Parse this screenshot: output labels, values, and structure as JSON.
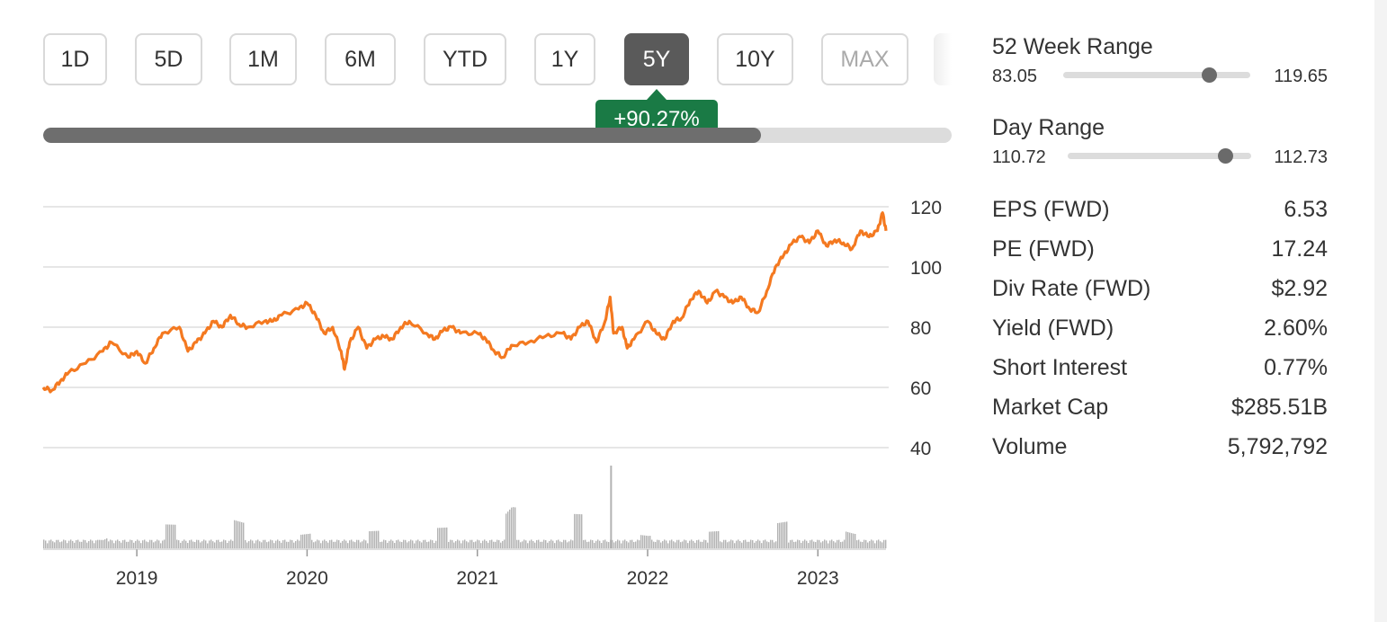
{
  "tabs": [
    {
      "label": "1D"
    },
    {
      "label": "5D"
    },
    {
      "label": "1M"
    },
    {
      "label": "6M"
    },
    {
      "label": "YTD"
    },
    {
      "label": "1Y"
    },
    {
      "label": "5Y"
    },
    {
      "label": "10Y"
    },
    {
      "label": "MAX"
    }
  ],
  "selected_tab": "5Y",
  "period_change": "+90.27%",
  "timeline_progress_percent": 79,
  "colors": {
    "price_line": "#f47920",
    "badge": "#1a7a45",
    "active_tab": "#5a5a5a",
    "volume": "#b3b3b3"
  },
  "ranges": {
    "week52": {
      "label": "52 Week Range",
      "low": "83.05",
      "high": "119.65",
      "position_percent": 78
    },
    "day": {
      "label": "Day Range",
      "low": "110.72",
      "high": "112.73",
      "position_percent": 86
    }
  },
  "stats": [
    {
      "label": "EPS (FWD)",
      "value": "6.53"
    },
    {
      "label": "PE (FWD)",
      "value": "17.24"
    },
    {
      "label": "Div Rate (FWD)",
      "value": "$2.92"
    },
    {
      "label": "Yield (FWD)",
      "value": "2.60%"
    },
    {
      "label": "Short Interest",
      "value": "0.77%"
    },
    {
      "label": "Market Cap",
      "value": "$285.51B"
    },
    {
      "label": "Volume",
      "value": "5,792,792"
    }
  ],
  "chart_data": {
    "type": "line",
    "ylim": [
      40,
      120
    ],
    "y_ticks": [
      "120",
      "100",
      "80",
      "60",
      "40"
    ],
    "x_ticks": [
      "2019",
      "2020",
      "2021",
      "2022",
      "2023"
    ],
    "x_ticks_years": [
      2019,
      2020,
      2021,
      2022,
      2023
    ],
    "xlim_years": [
      2018.45,
      2023.4
    ],
    "grid": true,
    "price_series": {
      "x": [
        2018.45,
        2018.5,
        2018.55,
        2018.6,
        2018.7,
        2018.8,
        2018.85,
        2018.95,
        2019.0,
        2019.05,
        2019.1,
        2019.15,
        2019.25,
        2019.3,
        2019.35,
        2019.4,
        2019.45,
        2019.5,
        2019.55,
        2019.6,
        2019.65,
        2019.75,
        2019.8,
        2019.85,
        2019.95,
        2020.0,
        2020.05,
        2020.1,
        2020.15,
        2020.2,
        2020.22,
        2020.25,
        2020.3,
        2020.35,
        2020.4,
        2020.45,
        2020.5,
        2020.55,
        2020.6,
        2020.7,
        2020.75,
        2020.8,
        2020.85,
        2020.9,
        2021.0,
        2021.05,
        2021.1,
        2021.15,
        2021.2,
        2021.3,
        2021.4,
        2021.5,
        2021.55,
        2021.6,
        2021.65,
        2021.7,
        2021.75,
        2021.78,
        2021.8,
        2021.85,
        2021.88,
        2021.92,
        2022.0,
        2022.05,
        2022.1,
        2022.15,
        2022.2,
        2022.25,
        2022.3,
        2022.35,
        2022.4,
        2022.45,
        2022.5,
        2022.55,
        2022.6,
        2022.65,
        2022.7,
        2022.75,
        2022.8,
        2022.85,
        2022.9,
        2022.95,
        2023.0,
        2023.05,
        2023.1,
        2023.15,
        2023.2,
        2023.25,
        2023.3,
        2023.35,
        2023.38,
        2023.4
      ],
      "y": [
        60,
        59,
        62,
        65,
        68,
        72,
        75,
        70,
        72,
        68,
        73,
        78,
        80,
        72,
        75,
        78,
        82,
        80,
        84,
        81,
        80,
        82,
        82,
        84,
        86,
        88,
        84,
        78,
        80,
        72,
        66,
        75,
        80,
        73,
        76,
        77,
        76,
        80,
        82,
        78,
        76,
        79,
        80,
        78,
        78,
        76,
        72,
        70,
        74,
        75,
        77,
        78,
        76,
        80,
        82,
        75,
        82,
        90,
        78,
        80,
        73,
        76,
        82,
        78,
        76,
        82,
        83,
        89,
        92,
        88,
        92,
        90,
        88,
        90,
        86,
        85,
        92,
        100,
        104,
        108,
        110,
        108,
        112,
        107,
        109,
        108,
        106,
        112,
        110,
        112,
        118,
        112
      ]
    },
    "volume_series": {
      "x": [
        2018.45,
        2018.8,
        2019.0,
        2019.3,
        2019.5,
        2019.9,
        2020.2,
        2020.3,
        2021.0,
        2021.05,
        2021.2,
        2021.5,
        2021.75,
        2021.78,
        2021.8,
        2022.0,
        2022.5,
        2022.9,
        2023.2,
        2023.4
      ],
      "relative": [
        0.12,
        0.1,
        0.3,
        0.28,
        0.38,
        0.15,
        0.22,
        0.2,
        0.27,
        0.15,
        0.5,
        0.42,
        0.4,
        1.0,
        0.2,
        0.15,
        0.22,
        0.35,
        0.18,
        0.1
      ]
    }
  }
}
